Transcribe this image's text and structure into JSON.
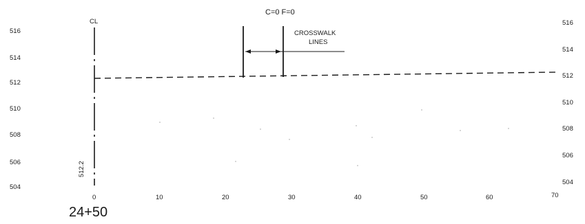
{
  "header": {
    "cut_fill": "C=0   F=0"
  },
  "centerline_label": "CL",
  "station_label": "24+50",
  "elevation_note": "512.2",
  "crosswalk_label": {
    "line1": "CROSSWALK",
    "line2": "LINES"
  },
  "y_axis": {
    "ticks": [
      504,
      506,
      508,
      510,
      512,
      514,
      516
    ],
    "left_labels": [
      "516",
      "514",
      "512",
      "510",
      "508",
      "506",
      "504"
    ],
    "right_labels": [
      "516",
      "514",
      "512",
      "510",
      "508",
      "506",
      "504"
    ]
  },
  "x_axis": {
    "ticks": [
      0,
      10,
      20,
      30,
      40,
      50,
      60,
      70
    ],
    "labels": [
      "0",
      "10",
      "20",
      "30",
      "40",
      "50",
      "60",
      "70"
    ]
  },
  "profile": {
    "elevation": 512.2,
    "from_offset": 0,
    "to_offset": 70
  },
  "crosswalk_lines": {
    "from_offset": 22.8,
    "to_offset": 28.8
  },
  "colors": {
    "ink": "#1a1a1a",
    "background": "#ffffff"
  }
}
